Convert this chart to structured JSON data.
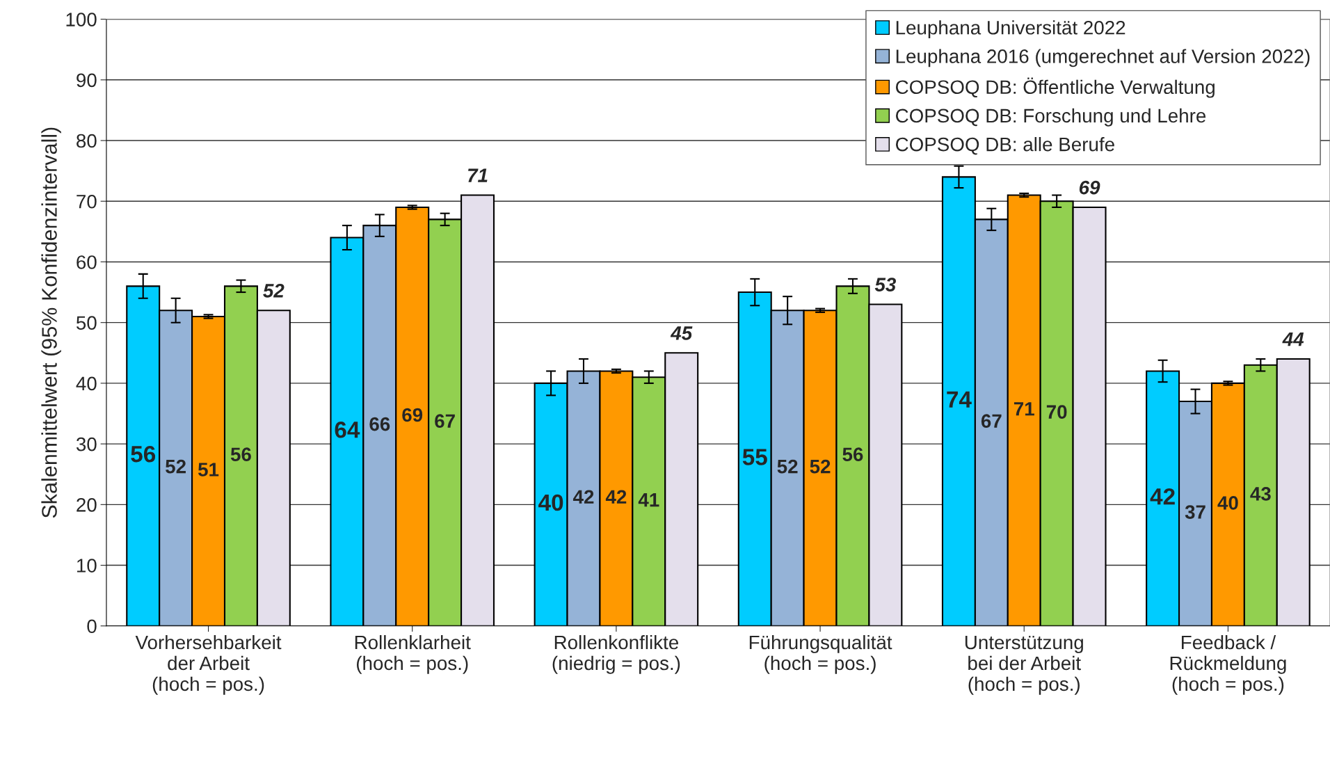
{
  "chart_data": {
    "type": "bar",
    "ylabel": "Skalenmittelwert (95% Konfidenzintervall)",
    "categories": [
      "Vorhersehbarkeit\nder Arbeit\n(hoch = pos.)",
      "Rollenklarheit\n(hoch = pos.)",
      "Rollenkonflikte\n(niedrig = pos.)",
      "Führungsqualität\n(hoch = pos.)",
      "Unterstützung\nbei der Arbeit\n(hoch = pos.)",
      "Feedback /\nRückmeldung\n(hoch = pos.)"
    ],
    "series": [
      {
        "name": "Leuphana Universität 2022",
        "color": "#00ccff",
        "values": [
          56,
          64,
          40,
          55,
          74,
          42
        ],
        "errors": [
          2,
          2,
          2,
          2.2,
          1.8,
          1.8
        ]
      },
      {
        "name": "Leuphana 2016 (umgerechnet auf Version 2022)",
        "color": "#95b3d7",
        "values": [
          52,
          66,
          42,
          52,
          67,
          37
        ],
        "errors": [
          2,
          1.8,
          2,
          2.3,
          1.8,
          2
        ]
      },
      {
        "name": "COPSOQ DB: Öffentliche Verwaltung",
        "color": "#ff9900",
        "values": [
          51,
          69,
          42,
          52,
          71,
          40
        ],
        "errors": [
          0.3,
          0.3,
          0.3,
          0.3,
          0.3,
          0.3
        ]
      },
      {
        "name": "COPSOQ DB: Forschung und Lehre",
        "color": "#92d050",
        "values": [
          56,
          67,
          41,
          56,
          70,
          43
        ],
        "errors": [
          1,
          1,
          1,
          1.2,
          1,
          1
        ]
      },
      {
        "name": "COPSOQ DB: alle Berufe",
        "color": "#e4dfec",
        "values": [
          52,
          71,
          45,
          53,
          69,
          44
        ]
      }
    ],
    "data_labels": true,
    "ylim": [
      0,
      100
    ],
    "yticks": [
      0,
      10,
      20,
      30,
      40,
      50,
      60,
      70,
      80,
      90,
      100
    ],
    "grid": "y",
    "legend": "top right"
  }
}
